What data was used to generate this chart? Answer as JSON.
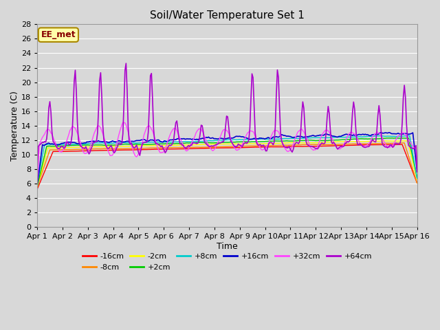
{
  "title": "Soil/Water Temperature Set 1",
  "xlabel": "Time",
  "ylabel": "Temperature (C)",
  "annotation": "EE_met",
  "ylim": [
    0,
    28
  ],
  "xlim": [
    0,
    15
  ],
  "xtick_labels": [
    "Apr 1",
    "Apr 2",
    "Apr 3",
    "Apr 4",
    "Apr 5",
    "Apr 6",
    "Apr 7",
    "Apr 8",
    "Apr 9",
    "Apr 10",
    "Apr 11",
    "Apr 12",
    "Apr 13",
    "Apr 14",
    "Apr 15",
    "Apr 16"
  ],
  "ytick_values": [
    0,
    2,
    4,
    6,
    8,
    10,
    12,
    14,
    16,
    18,
    20,
    22,
    24,
    26,
    28
  ],
  "series_colors": {
    "-16cm": "#ff0000",
    "-8cm": "#ff8800",
    "-2cm": "#ffff00",
    "+2cm": "#00cc00",
    "+8cm": "#00cccc",
    "+16cm": "#0000cc",
    "+32cm": "#ff44ff",
    "+64cm": "#aa00cc"
  },
  "bg_color": "#d8d8d8",
  "plot_bg_color": "#d8d8d8",
  "annotation_bg": "#ffffaa",
  "annotation_border": "#aa8800"
}
